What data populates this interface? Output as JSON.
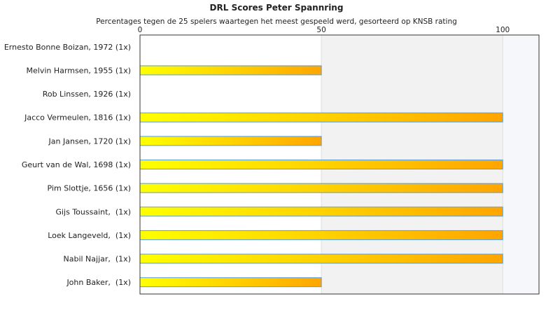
{
  "chart_data": {
    "type": "bar",
    "orientation": "horizontal",
    "title": "DRL Scores Peter Spannring",
    "subtitle": "Percentages tegen de 25 spelers waartegen het meest gespeeld werd, gesorteerd op KNSB rating",
    "categories": [
      "Ernesto Bonne Boizan, 1972 (1x)",
      "Melvin Harmsen, 1955 (1x)",
      "Rob Linssen, 1926 (1x)",
      "Jacco Vermeulen, 1816 (1x)",
      "Jan Jansen, 1720 (1x)",
      "Geurt van de Wal, 1698 (1x)",
      "Pim Slottje, 1656 (1x)",
      "Gijs Toussaint,  (1x)",
      "Loek Langeveld,  (1x)",
      "Nabil Najjar,  (1x)",
      "John Baker,  (1x)"
    ],
    "values": [
      0,
      50,
      0,
      100,
      50,
      100,
      100,
      100,
      100,
      100,
      50
    ],
    "xlim": [
      0,
      110
    ],
    "xticks": [
      "0",
      "50",
      "100"
    ],
    "xtick_values": [
      0,
      50,
      100
    ],
    "axis_position": "top",
    "grid": true,
    "colors": {
      "bar_start": "#ffff00",
      "bar_end": "#ffa500",
      "bar_stroke": "#5b9bd5",
      "band_light": "#ffffff",
      "band_grey": "#f2f2f2",
      "band_last": "#f6f7fb",
      "border": "#333333",
      "gridline": "#dddddd"
    }
  }
}
